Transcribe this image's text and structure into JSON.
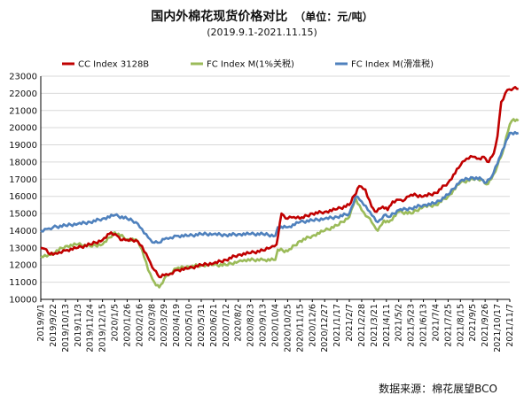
{
  "header": {
    "title": "国内外棉花现货价格对比",
    "unit": "（单位：元/吨）",
    "subtitle": "(2019.9.1-2021.11.15)"
  },
  "source": "数据来源：棉花展望BCO",
  "colors": {
    "cc": "#c00000",
    "fc1": "#9bbb59",
    "fcs": "#4f81bd",
    "grid": "#d9d9d9",
    "axis": "#000000"
  },
  "chart_data": {
    "type": "line",
    "title": "国内外棉花现货价格对比",
    "ylim": [
      10000,
      23000
    ],
    "yticks": [
      10000,
      11000,
      12000,
      13000,
      14000,
      15000,
      16000,
      17000,
      18000,
      19000,
      20000,
      21000,
      22000,
      23000
    ],
    "grid": true,
    "legend_position": "top",
    "x_tick_labels": [
      "2019/9/1",
      "2019/9/22",
      "2019/10/13",
      "2019/11/3",
      "2019/11/24",
      "2019/12/15",
      "2020/1/5",
      "2020/1/26",
      "2020/2/16",
      "2020/3/8",
      "2020/3/29",
      "2020/4/19",
      "2020/5/10",
      "2020/5/31",
      "2020/6/21",
      "2020/7/12",
      "2020/8/2",
      "2020/8/23",
      "2020/9/13",
      "2020/10/4",
      "2020/10/25",
      "2020/11/15",
      "2020/12/6",
      "2020/12/27",
      "2021/1/17",
      "2021/2/7",
      "2021/2/28",
      "2021/3/21",
      "2021/4/11",
      "2021/5/2",
      "2021/5/23",
      "2021/6/13",
      "2021/7/4",
      "2021/7/25",
      "2021/8/15",
      "2021/9/5",
      "2021/9/26",
      "2021/10/17",
      "2021/11/7"
    ],
    "series": [
      {
        "name": "CC Index 3128B",
        "points": [
          [
            0,
            13000
          ],
          [
            0.3,
            12950
          ],
          [
            0.6,
            12700
          ],
          [
            1,
            12600
          ],
          [
            1.5,
            12750
          ],
          [
            2,
            12850
          ],
          [
            3,
            13000
          ],
          [
            4,
            13200
          ],
          [
            5,
            13450
          ],
          [
            5.7,
            13900
          ],
          [
            6.2,
            13700
          ],
          [
            6.6,
            13450
          ],
          [
            7,
            13450
          ],
          [
            7.7,
            13450
          ],
          [
            8.2,
            13100
          ],
          [
            8.7,
            12400
          ],
          [
            9.2,
            11700
          ],
          [
            9.6,
            11300
          ],
          [
            10,
            11400
          ],
          [
            10.5,
            11500
          ],
          [
            11,
            11700
          ],
          [
            12,
            11800
          ],
          [
            13,
            12000
          ],
          [
            14,
            12100
          ],
          [
            15,
            12300
          ],
          [
            16,
            12600
          ],
          [
            17,
            12700
          ],
          [
            18,
            12850
          ],
          [
            18.6,
            13000
          ],
          [
            19.1,
            13200
          ],
          [
            19.5,
            15000
          ],
          [
            20,
            14700
          ],
          [
            20.5,
            14800
          ],
          [
            21,
            14700
          ],
          [
            22,
            15000
          ],
          [
            23,
            15100
          ],
          [
            24,
            15250
          ],
          [
            25,
            15500
          ],
          [
            25.8,
            16600
          ],
          [
            26.3,
            16400
          ],
          [
            26.8,
            15400
          ],
          [
            27.2,
            15100
          ],
          [
            27.7,
            15400
          ],
          [
            28.1,
            15200
          ],
          [
            28.5,
            15700
          ],
          [
            29,
            15800
          ],
          [
            29.5,
            15800
          ],
          [
            30,
            16100
          ],
          [
            31,
            16000
          ],
          [
            32,
            16200
          ],
          [
            33,
            16800
          ],
          [
            34,
            17800
          ],
          [
            34.5,
            18200
          ],
          [
            35,
            18300
          ],
          [
            35.5,
            18200
          ],
          [
            35.9,
            18300
          ],
          [
            36.3,
            18000
          ],
          [
            36.7,
            18500
          ],
          [
            37,
            19500
          ],
          [
            37.3,
            21500
          ],
          [
            37.8,
            22200
          ],
          [
            38.3,
            22300
          ],
          [
            38.7,
            22250
          ]
        ]
      },
      {
        "name": "FC Index M(1%关税)",
        "points": [
          [
            0,
            12500
          ],
          [
            0.5,
            12500
          ],
          [
            1,
            12700
          ],
          [
            2,
            13100
          ],
          [
            3,
            13200
          ],
          [
            4,
            13100
          ],
          [
            5,
            13200
          ],
          [
            6,
            13900
          ],
          [
            7,
            13500
          ],
          [
            7.7,
            13500
          ],
          [
            8.2,
            12900
          ],
          [
            8.7,
            11700
          ],
          [
            9.2,
            11000
          ],
          [
            9.6,
            10700
          ],
          [
            10,
            11200
          ],
          [
            10.5,
            11500
          ],
          [
            11,
            11800
          ],
          [
            12,
            11900
          ],
          [
            13,
            12000
          ],
          [
            14,
            12000
          ],
          [
            15,
            12000
          ],
          [
            16,
            12200
          ],
          [
            16.5,
            12300
          ],
          [
            18,
            12300
          ],
          [
            19,
            12300
          ],
          [
            19.2,
            12900
          ],
          [
            20,
            12800
          ],
          [
            21,
            13400
          ],
          [
            22,
            13700
          ],
          [
            23,
            14000
          ],
          [
            24,
            14300
          ],
          [
            25,
            14800
          ],
          [
            25.5,
            15900
          ],
          [
            26,
            15200
          ],
          [
            26.5,
            14800
          ],
          [
            27,
            14300
          ],
          [
            27.3,
            14000
          ],
          [
            27.8,
            14600
          ],
          [
            28.2,
            14500
          ],
          [
            29,
            15100
          ],
          [
            30,
            15000
          ],
          [
            31,
            15400
          ],
          [
            32,
            15500
          ],
          [
            33,
            16000
          ],
          [
            34,
            16800
          ],
          [
            35,
            17000
          ],
          [
            35.7,
            17000
          ],
          [
            36.1,
            16700
          ],
          [
            36.5,
            17000
          ],
          [
            37,
            17800
          ],
          [
            37.4,
            18500
          ],
          [
            38,
            20200
          ],
          [
            38.3,
            20500
          ],
          [
            38.7,
            20400
          ]
        ]
      },
      {
        "name": "FC Index M(滑准税)",
        "points": [
          [
            0,
            14000
          ],
          [
            0.5,
            14100
          ],
          [
            1,
            14200
          ],
          [
            2,
            14300
          ],
          [
            3,
            14400
          ],
          [
            4,
            14500
          ],
          [
            5,
            14700
          ],
          [
            6,
            14900
          ],
          [
            7,
            14700
          ],
          [
            7.7,
            14500
          ],
          [
            8.2,
            14100
          ],
          [
            8.7,
            13600
          ],
          [
            9.2,
            13300
          ],
          [
            9.6,
            13300
          ],
          [
            10,
            13500
          ],
          [
            10.5,
            13600
          ],
          [
            11,
            13700
          ],
          [
            12,
            13700
          ],
          [
            13,
            13800
          ],
          [
            14,
            13800
          ],
          [
            15,
            13750
          ],
          [
            16,
            13800
          ],
          [
            17,
            13800
          ],
          [
            18,
            13800
          ],
          [
            19,
            13700
          ],
          [
            19.2,
            14200
          ],
          [
            20,
            14200
          ],
          [
            21,
            14500
          ],
          [
            22,
            14600
          ],
          [
            23,
            14700
          ],
          [
            24,
            14800
          ],
          [
            25,
            15000
          ],
          [
            25.5,
            16000
          ],
          [
            26,
            15700
          ],
          [
            26.5,
            15200
          ],
          [
            27,
            14800
          ],
          [
            27.3,
            14500
          ],
          [
            27.8,
            14900
          ],
          [
            28.2,
            14800
          ],
          [
            29,
            15200
          ],
          [
            30,
            15300
          ],
          [
            31,
            15500
          ],
          [
            32,
            15600
          ],
          [
            33,
            16100
          ],
          [
            34,
            16900
          ],
          [
            35,
            17100
          ],
          [
            35.7,
            17000
          ],
          [
            36.1,
            16800
          ],
          [
            36.5,
            17100
          ],
          [
            37,
            17900
          ],
          [
            37.4,
            18700
          ],
          [
            38,
            19700
          ],
          [
            38.7,
            19700
          ]
        ]
      }
    ]
  }
}
